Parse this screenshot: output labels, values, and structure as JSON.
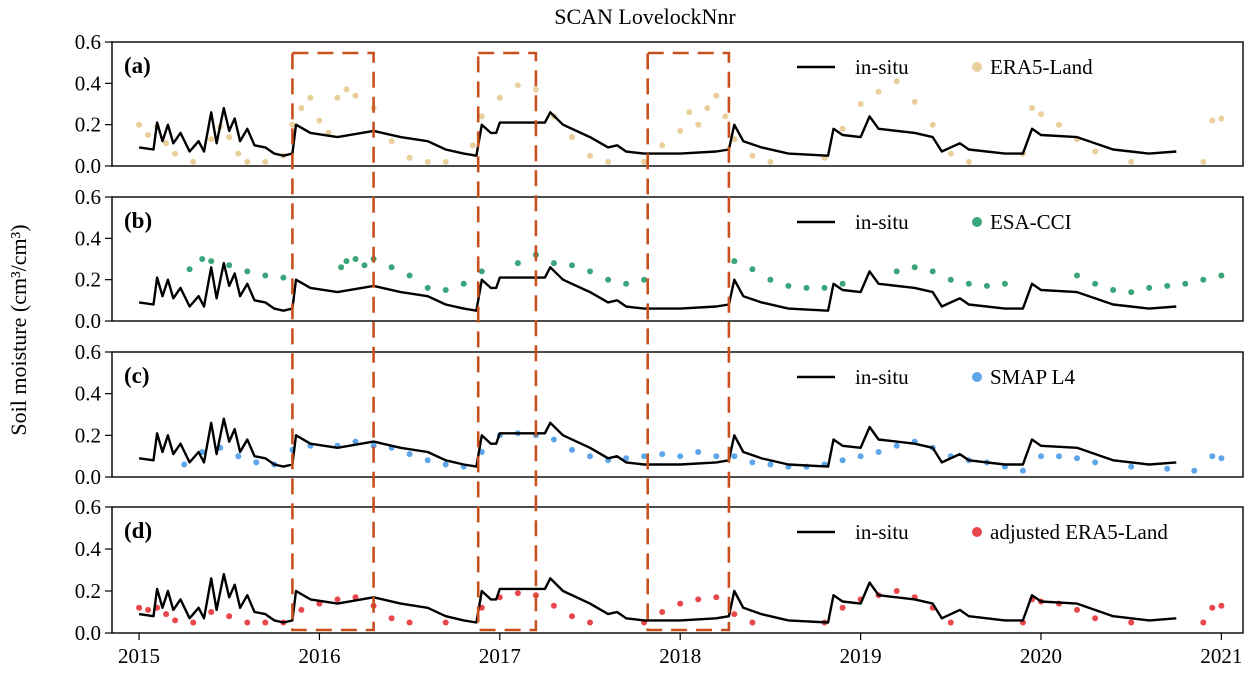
{
  "chart_data": {
    "type": "scatter",
    "title": "SCAN LovelockNnr",
    "ylabel": "Soil moisture (cm³/cm³)",
    "xlim": [
      2014.85,
      2021.12
    ],
    "ylim": [
      0,
      0.6
    ],
    "x_ticks": [
      "2015",
      "2016",
      "2017",
      "2018",
      "2019",
      "2020",
      "2021"
    ],
    "y_ticks": [
      "0.0",
      "0.2",
      "0.4",
      "0.6"
    ],
    "colors": {
      "insitu": "#000000",
      "era5": "#e9cf9b",
      "esacci": "#3aa57a",
      "smap": "#5ea6ea",
      "adjusted": "#e8474c",
      "highlight": "#c8501c"
    },
    "highlight_periods": [
      [
        2015.85,
        2016.3
      ],
      [
        2016.88,
        2017.2
      ],
      [
        2017.82,
        2018.27
      ]
    ],
    "insitu": {
      "name": "in-situ",
      "points": [
        [
          2015.0,
          0.09
        ],
        [
          2015.08,
          0.08
        ],
        [
          2015.1,
          0.21
        ],
        [
          2015.13,
          0.12
        ],
        [
          2015.16,
          0.2
        ],
        [
          2015.19,
          0.11
        ],
        [
          2015.23,
          0.16
        ],
        [
          2015.28,
          0.07
        ],
        [
          2015.33,
          0.12
        ],
        [
          2015.36,
          0.07
        ],
        [
          2015.4,
          0.26
        ],
        [
          2015.43,
          0.11
        ],
        [
          2015.47,
          0.28
        ],
        [
          2015.5,
          0.17
        ],
        [
          2015.53,
          0.23
        ],
        [
          2015.56,
          0.12
        ],
        [
          2015.6,
          0.18
        ],
        [
          2015.64,
          0.1
        ],
        [
          2015.7,
          0.09
        ],
        [
          2015.75,
          0.06
        ],
        [
          2015.8,
          0.05
        ],
        [
          2015.85,
          0.06
        ],
        [
          2015.87,
          0.2
        ],
        [
          2015.95,
          0.16
        ],
        [
          2016.1,
          0.14
        ],
        [
          2016.3,
          0.17
        ],
        [
          2016.45,
          0.14
        ],
        [
          2016.6,
          0.12
        ],
        [
          2016.7,
          0.08
        ],
        [
          2016.8,
          0.06
        ],
        [
          2016.87,
          0.05
        ],
        [
          2016.9,
          0.2
        ],
        [
          2016.95,
          0.16
        ],
        [
          2016.98,
          0.16
        ],
        [
          2017.0,
          0.21
        ],
        [
          2017.25,
          0.21
        ],
        [
          2017.28,
          0.26
        ],
        [
          2017.35,
          0.2
        ],
        [
          2017.5,
          0.14
        ],
        [
          2017.6,
          0.09
        ],
        [
          2017.65,
          0.1
        ],
        [
          2017.7,
          0.07
        ],
        [
          2017.8,
          0.06
        ],
        [
          2018.0,
          0.06
        ],
        [
          2018.2,
          0.07
        ],
        [
          2018.27,
          0.08
        ],
        [
          2018.3,
          0.2
        ],
        [
          2018.35,
          0.12
        ],
        [
          2018.45,
          0.09
        ],
        [
          2018.6,
          0.06
        ],
        [
          2018.82,
          0.05
        ],
        [
          2018.85,
          0.18
        ],
        [
          2018.9,
          0.15
        ],
        [
          2019.0,
          0.14
        ],
        [
          2019.05,
          0.24
        ],
        [
          2019.1,
          0.18
        ],
        [
          2019.3,
          0.16
        ],
        [
          2019.4,
          0.14
        ],
        [
          2019.45,
          0.07
        ],
        [
          2019.55,
          0.11
        ],
        [
          2019.6,
          0.08
        ],
        [
          2019.8,
          0.06
        ],
        [
          2019.9,
          0.06
        ],
        [
          2019.95,
          0.18
        ],
        [
          2020.0,
          0.15
        ],
        [
          2020.2,
          0.14
        ],
        [
          2020.4,
          0.08
        ],
        [
          2020.6,
          0.06
        ],
        [
          2020.75,
          0.07
        ]
      ]
    },
    "panels": [
      {
        "label": "(a)",
        "legend_line": "in-situ",
        "legend_dots": "ERA5-Land",
        "series_name": "ERA5-Land",
        "color_key": "era5",
        "points": [
          [
            2015.0,
            0.2
          ],
          [
            2015.05,
            0.15
          ],
          [
            2015.1,
            0.19
          ],
          [
            2015.15,
            0.11
          ],
          [
            2015.2,
            0.06
          ],
          [
            2015.3,
            0.02
          ],
          [
            2015.4,
            0.13
          ],
          [
            2015.45,
            0.19
          ],
          [
            2015.5,
            0.14
          ],
          [
            2015.55,
            0.06
          ],
          [
            2015.6,
            0.02
          ],
          [
            2015.7,
            0.02
          ],
          [
            2015.8,
            0.05
          ],
          [
            2015.85,
            0.2
          ],
          [
            2015.9,
            0.28
          ],
          [
            2015.95,
            0.33
          ],
          [
            2016.0,
            0.22
          ],
          [
            2016.05,
            0.16
          ],
          [
            2016.1,
            0.33
          ],
          [
            2016.15,
            0.37
          ],
          [
            2016.2,
            0.34
          ],
          [
            2016.3,
            0.28
          ],
          [
            2016.4,
            0.12
          ],
          [
            2016.5,
            0.04
          ],
          [
            2016.6,
            0.02
          ],
          [
            2016.7,
            0.02
          ],
          [
            2016.85,
            0.1
          ],
          [
            2016.9,
            0.24
          ],
          [
            2017.0,
            0.33
          ],
          [
            2017.1,
            0.39
          ],
          [
            2017.2,
            0.37
          ],
          [
            2017.3,
            0.24
          ],
          [
            2017.4,
            0.14
          ],
          [
            2017.5,
            0.05
          ],
          [
            2017.6,
            0.02
          ],
          [
            2017.8,
            0.02
          ],
          [
            2017.9,
            0.1
          ],
          [
            2018.0,
            0.17
          ],
          [
            2018.05,
            0.26
          ],
          [
            2018.1,
            0.2
          ],
          [
            2018.15,
            0.28
          ],
          [
            2018.2,
            0.34
          ],
          [
            2018.25,
            0.24
          ],
          [
            2018.3,
            0.13
          ],
          [
            2018.4,
            0.05
          ],
          [
            2018.5,
            0.02
          ],
          [
            2018.8,
            0.04
          ],
          [
            2018.9,
            0.18
          ],
          [
            2019.0,
            0.3
          ],
          [
            2019.1,
            0.36
          ],
          [
            2019.2,
            0.41
          ],
          [
            2019.3,
            0.31
          ],
          [
            2019.4,
            0.2
          ],
          [
            2019.5,
            0.06
          ],
          [
            2019.6,
            0.02
          ],
          [
            2019.9,
            0.06
          ],
          [
            2019.95,
            0.28
          ],
          [
            2020.0,
            0.25
          ],
          [
            2020.1,
            0.2
          ],
          [
            2020.2,
            0.13
          ],
          [
            2020.3,
            0.07
          ],
          [
            2020.5,
            0.02
          ],
          [
            2020.9,
            0.02
          ],
          [
            2020.95,
            0.22
          ],
          [
            2021.0,
            0.23
          ]
        ]
      },
      {
        "label": "(b)",
        "legend_line": "in-situ",
        "legend_dots": "ESA-CCI",
        "series_name": "ESA-CCI",
        "color_key": "esacci",
        "points": [
          [
            2015.28,
            0.25
          ],
          [
            2015.35,
            0.3
          ],
          [
            2015.4,
            0.29
          ],
          [
            2015.5,
            0.27
          ],
          [
            2015.6,
            0.24
          ],
          [
            2015.7,
            0.22
          ],
          [
            2015.8,
            0.21
          ],
          [
            2016.12,
            0.26
          ],
          [
            2016.15,
            0.29
          ],
          [
            2016.2,
            0.3
          ],
          [
            2016.25,
            0.27
          ],
          [
            2016.3,
            0.3
          ],
          [
            2016.4,
            0.26
          ],
          [
            2016.5,
            0.22
          ],
          [
            2016.6,
            0.16
          ],
          [
            2016.7,
            0.15
          ],
          [
            2016.8,
            0.18
          ],
          [
            2016.9,
            0.24
          ],
          [
            2017.1,
            0.28
          ],
          [
            2017.2,
            0.32
          ],
          [
            2017.3,
            0.28
          ],
          [
            2017.4,
            0.27
          ],
          [
            2017.5,
            0.24
          ],
          [
            2017.6,
            0.2
          ],
          [
            2017.7,
            0.18
          ],
          [
            2017.8,
            0.2
          ],
          [
            2018.3,
            0.29
          ],
          [
            2018.4,
            0.25
          ],
          [
            2018.5,
            0.2
          ],
          [
            2018.6,
            0.17
          ],
          [
            2018.7,
            0.16
          ],
          [
            2018.8,
            0.16
          ],
          [
            2018.9,
            0.18
          ],
          [
            2019.2,
            0.24
          ],
          [
            2019.3,
            0.26
          ],
          [
            2019.4,
            0.24
          ],
          [
            2019.5,
            0.2
          ],
          [
            2019.6,
            0.18
          ],
          [
            2019.7,
            0.17
          ],
          [
            2019.8,
            0.18
          ],
          [
            2020.2,
            0.22
          ],
          [
            2020.3,
            0.18
          ],
          [
            2020.4,
            0.15
          ],
          [
            2020.5,
            0.14
          ],
          [
            2020.6,
            0.16
          ],
          [
            2020.7,
            0.17
          ],
          [
            2020.8,
            0.18
          ],
          [
            2020.9,
            0.2
          ],
          [
            2021.0,
            0.22
          ]
        ]
      },
      {
        "label": "(c)",
        "legend_line": "in-situ",
        "legend_dots": "SMAP L4",
        "series_name": "SMAP L4",
        "color_key": "smap",
        "points": [
          [
            2015.25,
            0.06
          ],
          [
            2015.35,
            0.12
          ],
          [
            2015.45,
            0.14
          ],
          [
            2015.55,
            0.1
          ],
          [
            2015.65,
            0.07
          ],
          [
            2015.75,
            0.06
          ],
          [
            2015.85,
            0.13
          ],
          [
            2015.95,
            0.15
          ],
          [
            2016.1,
            0.15
          ],
          [
            2016.2,
            0.17
          ],
          [
            2016.3,
            0.15
          ],
          [
            2016.4,
            0.14
          ],
          [
            2016.5,
            0.11
          ],
          [
            2016.6,
            0.08
          ],
          [
            2016.7,
            0.06
          ],
          [
            2016.8,
            0.05
          ],
          [
            2016.9,
            0.12
          ],
          [
            2017.0,
            0.2
          ],
          [
            2017.1,
            0.21
          ],
          [
            2017.2,
            0.2
          ],
          [
            2017.3,
            0.18
          ],
          [
            2017.4,
            0.13
          ],
          [
            2017.5,
            0.1
          ],
          [
            2017.6,
            0.08
          ],
          [
            2017.7,
            0.09
          ],
          [
            2017.8,
            0.1
          ],
          [
            2017.9,
            0.11
          ],
          [
            2018.0,
            0.1
          ],
          [
            2018.1,
            0.12
          ],
          [
            2018.2,
            0.1
          ],
          [
            2018.3,
            0.1
          ],
          [
            2018.4,
            0.07
          ],
          [
            2018.5,
            0.06
          ],
          [
            2018.6,
            0.05
          ],
          [
            2018.7,
            0.05
          ],
          [
            2018.8,
            0.06
          ],
          [
            2018.9,
            0.08
          ],
          [
            2019.0,
            0.1
          ],
          [
            2019.1,
            0.12
          ],
          [
            2019.2,
            0.15
          ],
          [
            2019.3,
            0.17
          ],
          [
            2019.4,
            0.14
          ],
          [
            2019.5,
            0.1
          ],
          [
            2019.6,
            0.08
          ],
          [
            2019.7,
            0.07
          ],
          [
            2019.8,
            0.05
          ],
          [
            2019.9,
            0.03
          ],
          [
            2020.0,
            0.1
          ],
          [
            2020.1,
            0.1
          ],
          [
            2020.2,
            0.09
          ],
          [
            2020.3,
            0.07
          ],
          [
            2020.5,
            0.05
          ],
          [
            2020.7,
            0.04
          ],
          [
            2020.85,
            0.03
          ],
          [
            2020.95,
            0.1
          ],
          [
            2021.0,
            0.09
          ]
        ]
      },
      {
        "label": "(d)",
        "legend_line": "in-situ",
        "legend_dots": "adjusted ERA5-Land",
        "series_name": "adjusted ERA5-Land",
        "color_key": "adjusted",
        "points": [
          [
            2015.0,
            0.12
          ],
          [
            2015.05,
            0.11
          ],
          [
            2015.1,
            0.12
          ],
          [
            2015.15,
            0.09
          ],
          [
            2015.2,
            0.06
          ],
          [
            2015.3,
            0.05
          ],
          [
            2015.4,
            0.1
          ],
          [
            2015.5,
            0.08
          ],
          [
            2015.6,
            0.05
          ],
          [
            2015.7,
            0.05
          ],
          [
            2015.8,
            0.05
          ],
          [
            2015.9,
            0.11
          ],
          [
            2016.0,
            0.14
          ],
          [
            2016.1,
            0.16
          ],
          [
            2016.2,
            0.17
          ],
          [
            2016.3,
            0.13
          ],
          [
            2016.4,
            0.07
          ],
          [
            2016.5,
            0.05
          ],
          [
            2016.7,
            0.05
          ],
          [
            2016.9,
            0.12
          ],
          [
            2017.0,
            0.17
          ],
          [
            2017.1,
            0.19
          ],
          [
            2017.2,
            0.18
          ],
          [
            2017.3,
            0.13
          ],
          [
            2017.4,
            0.08
          ],
          [
            2017.5,
            0.05
          ],
          [
            2017.8,
            0.05
          ],
          [
            2017.9,
            0.1
          ],
          [
            2018.0,
            0.14
          ],
          [
            2018.1,
            0.16
          ],
          [
            2018.2,
            0.17
          ],
          [
            2018.3,
            0.09
          ],
          [
            2018.4,
            0.05
          ],
          [
            2018.8,
            0.05
          ],
          [
            2018.9,
            0.12
          ],
          [
            2019.0,
            0.16
          ],
          [
            2019.1,
            0.18
          ],
          [
            2019.2,
            0.2
          ],
          [
            2019.3,
            0.17
          ],
          [
            2019.4,
            0.12
          ],
          [
            2019.5,
            0.05
          ],
          [
            2019.9,
            0.05
          ],
          [
            2019.95,
            0.16
          ],
          [
            2020.0,
            0.15
          ],
          [
            2020.1,
            0.14
          ],
          [
            2020.2,
            0.11
          ],
          [
            2020.3,
            0.07
          ],
          [
            2020.5,
            0.05
          ],
          [
            2020.9,
            0.05
          ],
          [
            2020.95,
            0.12
          ],
          [
            2021.0,
            0.13
          ]
        ]
      }
    ]
  }
}
